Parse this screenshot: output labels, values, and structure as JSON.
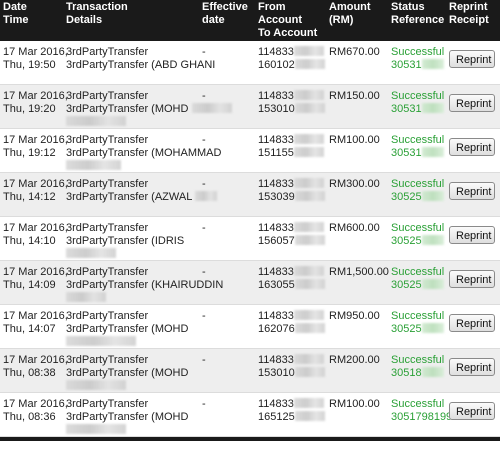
{
  "header": {
    "date_time": [
      "Date",
      "Time"
    ],
    "transaction_details": [
      "Transaction",
      "Details"
    ],
    "effective_date": [
      "Effective",
      "date"
    ],
    "from_to_account": [
      "From",
      "Account",
      "To Account"
    ],
    "amount": [
      "Amount",
      "(RM)"
    ],
    "status_reference": [
      "Status",
      "Reference"
    ],
    "reprint_receipt": [
      "Reprint",
      "Receipt"
    ]
  },
  "reprint_label": "Reprint",
  "rows": [
    {
      "date": "17 Mar 2016,",
      "time": "Thu, 19:50",
      "type": "3rdPartyTransfer",
      "detail": "3rdPartyTransfer (ABD GHANI",
      "detail2": "",
      "effective": "-",
      "from": "114833",
      "to": "160102",
      "amount": "RM670.00",
      "status": "Successful",
      "reference": "30531"
    },
    {
      "date": "17 Mar 2016,",
      "time": "Thu, 19:20",
      "type": "3rdPartyTransfer",
      "detail": "3rdPartyTransfer (MOHD",
      "detail2": "",
      "effective": "-",
      "from": "114833",
      "to": "153010",
      "amount": "RM150.00",
      "status": "Successful",
      "reference": "30531"
    },
    {
      "date": "17 Mar 2016,",
      "time": "Thu, 19:12",
      "type": "3rdPartyTransfer",
      "detail": "3rdPartyTransfer (MOHAMMAD",
      "detail2": "",
      "effective": "-",
      "from": "114833",
      "to": "151155",
      "amount": "RM100.00",
      "status": "Successful",
      "reference": "30531"
    },
    {
      "date": "17 Mar 2016,",
      "time": "Thu, 14:12",
      "type": "3rdPartyTransfer",
      "detail": "3rdPartyTransfer (AZWAL",
      "detail2": "",
      "effective": "-",
      "from": "114833",
      "to": "153039",
      "amount": "RM300.00",
      "status": "Successful",
      "reference": "30525"
    },
    {
      "date": "17 Mar 2016,",
      "time": "Thu, 14:10",
      "type": "3rdPartyTransfer",
      "detail": "3rdPartyTransfer (IDRIS",
      "detail2": "",
      "effective": "-",
      "from": "114833",
      "to": "156057",
      "amount": "RM600.00",
      "status": "Successful",
      "reference": "30525"
    },
    {
      "date": "17 Mar 2016,",
      "time": "Thu, 14:09",
      "type": "3rdPartyTransfer",
      "detail": "3rdPartyTransfer (KHAIRUDDIN",
      "detail2": "",
      "effective": "-",
      "from": "114833",
      "to": "163055",
      "amount": "RM1,500.00",
      "status": "Successful",
      "reference": "30525"
    },
    {
      "date": "17 Mar 2016,",
      "time": "Thu, 14:07",
      "type": "3rdPartyTransfer",
      "detail": "3rdPartyTransfer (MOHD",
      "detail2": "",
      "effective": "-",
      "from": "114833",
      "to": "162076",
      "amount": "RM950.00",
      "status": "Successful",
      "reference": "30525"
    },
    {
      "date": "17 Mar 2016,",
      "time": "Thu, 08:38",
      "type": "3rdPartyTransfer",
      "detail": "3rdPartyTransfer (MOHD",
      "detail2": "",
      "effective": "-",
      "from": "114833",
      "to": "153010",
      "amount": "RM200.00",
      "status": "Successful",
      "reference": "30518"
    },
    {
      "date": "17 Mar 2016,",
      "time": "Thu, 08:36",
      "type": "3rdPartyTransfer",
      "detail": "3rdPartyTransfer (MOHD",
      "detail2": "",
      "effective": "-",
      "from": "114833",
      "to": "165125",
      "amount": "RM100.00",
      "status": "Successful",
      "reference": "3051798199"
    }
  ],
  "colors": {
    "header_bg": "#1a1a1a",
    "header_text": "#ffffff",
    "row_alt_bg": "#eeeeee",
    "success_green": "#2aa036"
  }
}
